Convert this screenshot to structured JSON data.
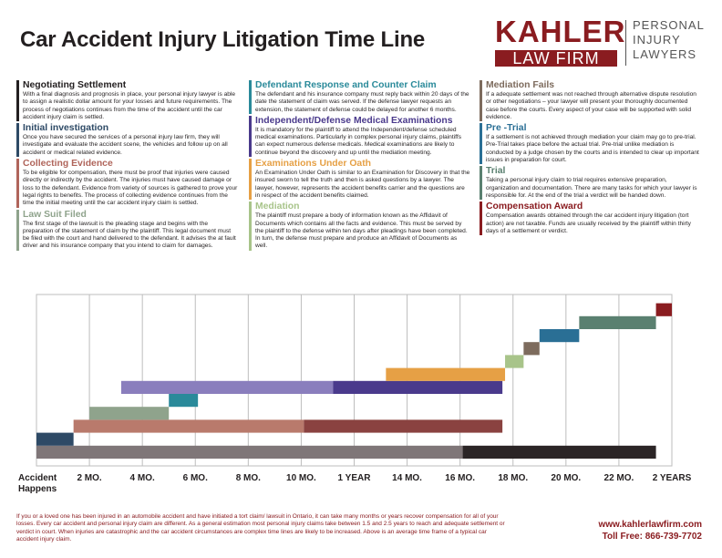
{
  "title": "Car Accident Injury Litigation Time Line",
  "logo": {
    "brand_top": "KAHLER",
    "brand_bottom": "LAW FIRM",
    "line1": "PERSONAL",
    "line2": "INJURY",
    "line3": "LAWYERS",
    "brand_color": "#8a1c20"
  },
  "columns": [
    [
      {
        "title": "Negotiating Settlement",
        "color": "#231f20",
        "text": "With a final diagnosis and prognosis in place, your personal injury lawyer is able to assign a realistic dollar amount for your losses and future requirements. The process of negotiations continues from the time of the accident until the car accident injury claim is settled."
      },
      {
        "title": "Initial investigation",
        "color": "#2e4a66",
        "text": "Once you have secured the services of a personal injury law firm, they will investigate and evaluate the accident scene, the vehicles and follow up on all accident or medical related evidence."
      },
      {
        "title": "Collecting Evidence",
        "color": "#b0655b",
        "text": "To be eligible for compensation, there must be proof that injuries were caused directly or indirectly by the accident. The injuries must have caused damage or loss to the defendant. Evidence from variety of sources is gathered to prove your legal rights to benefits. The process of collecting evidence continues from the time the initial meeting until the car accident injury claim is settled."
      },
      {
        "title": "Law Suit Filed",
        "color": "#8fa38c",
        "text": "The first stage of the lawsuit is the pleading stage and begins with the preparation of the statement of claim by the plaintiff. This legal document must be filed with the court and hand delivered to the defendant. It advises the at fault driver and his insurance company that you intend to claim for damages."
      }
    ],
    [
      {
        "title": "Defendant Response and Counter Claim",
        "color": "#2a8a9a",
        "text": "The defendant and his insurance company must reply back within 20 days of the date the statement of claim was served. If the defense lawyer requests an extension, the statement of defense could be delayed for another 6 months."
      },
      {
        "title": "Independent/Defense Medical Examinations",
        "color": "#4a3a8c",
        "text": "It is mandatory for the plaintiff to attend the Independent/defense scheduled medical examinations. Particularly in complex personal injury claims, plaintiffs can expect numerous defense medicals. Medical examinations are likely to continue beyond the discovery and up until the mediation meeting."
      },
      {
        "title": "Examinations Under Oath",
        "color": "#e6a045",
        "text": "An Examination Under Oath is similar to an Examination for Discovery in that the insured sworn to tell the truth and then is asked questions by a lawyer. The lawyer, however, represents the accident benefits carrier and the questions are in respect of the accident benefits claimed."
      },
      {
        "title": "Mediation",
        "color": "#a8c48a",
        "text": "The plaintiff must prepare a body of information known as the Affidavit of Documents which contains all the facts and evidence. This must be served by the plaintiff to the defense within ten days after pleadings have been completed. In turn, the defense must prepare and produce an Affidavit of Documents as well."
      }
    ],
    [
      {
        "title": "Mediation Fails",
        "color": "#7d6b5d",
        "text": "If a adequate settlement was not reached through alternative dispute resolution or other negotiations – your lawyer will present your thoroughly documented case before the courts. Every aspect of your case will be supported with solid evidence."
      },
      {
        "title": "Pre -Trial",
        "color": "#2a6f95",
        "text": "If a settlement is not achieved through mediation your claim may go to pre-trial. Pre-Trial takes place before the actual trial. Pre-trial unlike mediation is conducted by a judge chosen by the courts and is intended to clear up important issues in preparation for court."
      },
      {
        "title": "Trial",
        "color": "#5a8070",
        "text": "Taking a personal injury claim to trial requires extensive preparation, organization and documentation. There are many tasks for which your lawyer is responsible for. At the end of the trial a verdict will be handed down."
      },
      {
        "title": "Compensation Award",
        "color": "#8a1c20",
        "text": "Compensation awards obtained through the car accident injury litigation (tort action) are not taxable. Funds are usually received by the plaintiff within thirty days of a settlement or verdict."
      }
    ]
  ],
  "timeline": {
    "axis_labels": [
      {
        "month": 0,
        "label": "Accident\nHappens"
      },
      {
        "month": 2,
        "label": "2 MO."
      },
      {
        "month": 4,
        "label": "4 MO."
      },
      {
        "month": 6,
        "label": "6 MO."
      },
      {
        "month": 8,
        "label": "8 MO."
      },
      {
        "month": 10,
        "label": "10 MO."
      },
      {
        "month": 12,
        "label": "1 YEAR"
      },
      {
        "month": 14,
        "label": "14 MO."
      },
      {
        "month": 16,
        "label": "16 MO."
      },
      {
        "month": 18,
        "label": "18 MO."
      },
      {
        "month": 20,
        "label": "20 MO."
      },
      {
        "month": 22,
        "label": "22 MO."
      },
      {
        "month": 24,
        "label": "2 YEARS"
      }
    ],
    "max_month": 24,
    "rows": [
      [
        {
          "start": 0,
          "end": 16.1,
          "color": "#7f7678"
        },
        {
          "start": 16.1,
          "end": 23.4,
          "color": "#2b2526"
        }
      ],
      [
        {
          "start": 0,
          "end": 1.4,
          "color": "#2e4a66"
        }
      ],
      [
        {
          "start": 1.4,
          "end": 10.1,
          "color": "#b97a6c"
        },
        {
          "start": 10.1,
          "end": 17.6,
          "color": "#8a4240"
        }
      ],
      [
        {
          "start": 2.0,
          "end": 5.0,
          "color": "#8fa38c"
        }
      ],
      [
        {
          "start": 5.0,
          "end": 6.1,
          "color": "#2a8a9a"
        }
      ],
      [
        {
          "start": 3.2,
          "end": 11.2,
          "color": "#8a7ebd"
        },
        {
          "start": 11.2,
          "end": 17.6,
          "color": "#4a3a8c"
        }
      ],
      [
        {
          "start": 13.2,
          "end": 17.7,
          "color": "#e6a045"
        }
      ],
      [
        {
          "start": 17.7,
          "end": 18.4,
          "color": "#a8c48a"
        }
      ],
      [
        {
          "start": 18.4,
          "end": 19.0,
          "color": "#7d6b5d"
        }
      ],
      [
        {
          "start": 19.0,
          "end": 20.5,
          "color": "#2a6f95"
        }
      ],
      [
        {
          "start": 20.5,
          "end": 23.4,
          "color": "#5a8070"
        }
      ],
      [
        {
          "start": 23.4,
          "end": 24.0,
          "color": "#8a1c20"
        }
      ]
    ]
  },
  "footer": {
    "text": "If you or a loved one has been injured in an automobile accident and have initiated a tort claim/ lawsuit in Ontario, it can take many months or years recover compensation for all of your losses. Every car accident and personal injury claim are different. As a general estimation most personal injury claims take between 1.5 and 2.5 years to reach and adequate settlement or verdict in court. When injuries are catastrophic and the car accident circumstances are complex time lines are likely to be increased. Above is an average time frame of a typical car accident injury claim.",
    "url": "www.kahlerlawfirm.com",
    "phone": "Toll Free: 866-739-7702"
  }
}
